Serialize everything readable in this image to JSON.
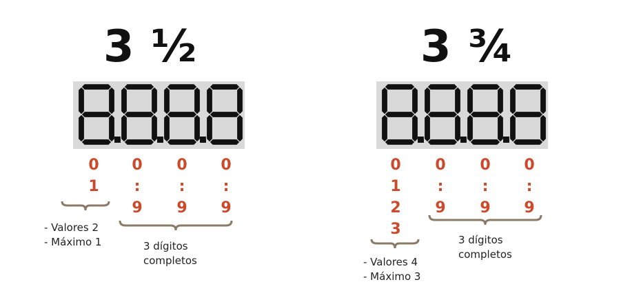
{
  "panels": [
    {
      "title": "3 ½",
      "columns": [
        [
          "0",
          "1"
        ],
        [
          "0",
          ":",
          "9"
        ],
        [
          "0",
          ":",
          "9"
        ],
        [
          "0",
          ":",
          "9"
        ]
      ],
      "first_digit_note": [
        "- Valores 2",
        "- Máximo 1"
      ],
      "full_digits_note": [
        "3 dígitos",
        "completos"
      ]
    },
    {
      "title": "3 ¾",
      "columns": [
        [
          "0",
          "1",
          "2",
          "3"
        ],
        [
          "0",
          ":",
          "9"
        ],
        [
          "0",
          ":",
          "9"
        ],
        [
          "0",
          ":",
          "9"
        ]
      ],
      "first_digit_note": [
        "- Valores 4",
        "- Máximo 3"
      ],
      "full_digits_note": [
        "3 dígitos",
        "completos"
      ]
    }
  ],
  "colors": {
    "digit_values": "#cc4a2c",
    "lcd_background": "#d9d9d9",
    "segments": "#111111",
    "brace": "#8a7a66"
  }
}
